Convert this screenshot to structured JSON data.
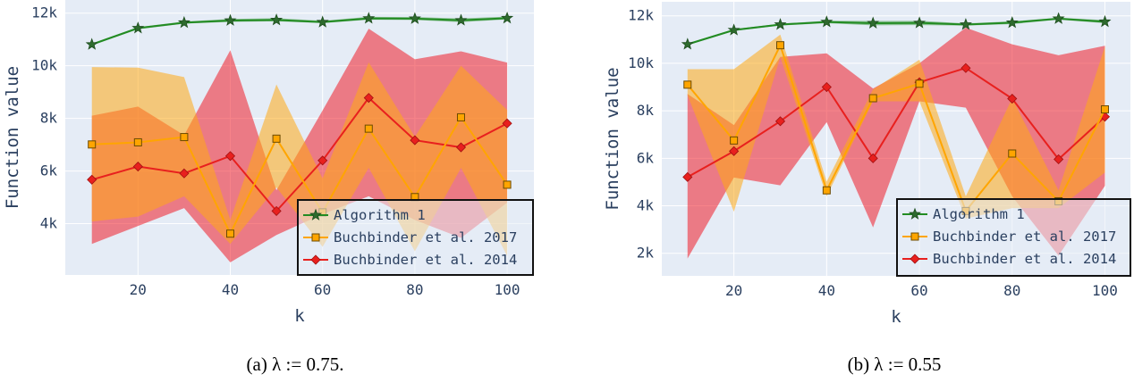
{
  "chart_data": [
    {
      "type": "line",
      "title": "",
      "xlabel": "k",
      "ylabel": "Function value",
      "xlim": [
        4.24,
        105.8
      ],
      "ylim": [
        2050,
        12500
      ],
      "x": [
        10,
        20,
        30,
        40,
        50,
        60,
        70,
        80,
        90,
        100
      ],
      "x_ticks": [
        20,
        40,
        60,
        80,
        100
      ],
      "y_ticks": [
        4000,
        6000,
        8000,
        10000,
        12000
      ],
      "y_tick_labels": [
        "4k",
        "6k",
        "8k",
        "10k",
        "12k"
      ],
      "grid": true,
      "legend_position": "bottom-right",
      "series": [
        {
          "name": "Algorithm 1",
          "color": "#228b22",
          "marker": "star",
          "values": [
            10810,
            11430,
            11640,
            11720,
            11740,
            11660,
            11800,
            11790,
            11730,
            11810
          ],
          "upper": [
            10850,
            11470,
            11680,
            11780,
            11810,
            11710,
            11860,
            11850,
            11800,
            11870
          ],
          "lower": [
            10770,
            11390,
            11600,
            11670,
            11690,
            11620,
            11750,
            11740,
            11660,
            11760
          ]
        },
        {
          "name": "Buchbinder et al. 2017",
          "color": "#ffa500",
          "marker": "square",
          "values": [
            7010,
            7090,
            7290,
            3620,
            7230,
            4430,
            7610,
            5010,
            8040,
            5480
          ],
          "upper": [
            9950,
            9930,
            9570,
            4140,
            9290,
            5720,
            10130,
            7300,
            10000,
            8320
          ],
          "lower": [
            4080,
            4270,
            5040,
            3230,
            5380,
            3120,
            6120,
            2950,
            6120,
            2780
          ]
        },
        {
          "name": "Buchbinder et al. 2014",
          "color": "#e8201e",
          "marker": "diamond",
          "values": [
            5670,
            6170,
            5910,
            6570,
            4480,
            6400,
            8780,
            7170,
            6900,
            7810
          ],
          "upper": [
            8100,
            8450,
            7360,
            10590,
            5270,
            8300,
            11410,
            10250,
            10550,
            10120
          ],
          "lower": [
            3230,
            3910,
            4590,
            2530,
            3570,
            4360,
            5040,
            4140,
            3460,
            4800
          ]
        }
      ],
      "caption": "(a) λ := 0.75."
    },
    {
      "type": "line",
      "title": "",
      "xlabel": "k",
      "ylabel": "Function value",
      "xlim": [
        4.45,
        105.5
      ],
      "ylim": [
        1050,
        12590
      ],
      "x": [
        10,
        20,
        30,
        40,
        50,
        60,
        70,
        80,
        90,
        100
      ],
      "x_ticks": [
        20,
        40,
        60,
        80,
        100
      ],
      "y_ticks": [
        2000,
        4000,
        6000,
        8000,
        10000,
        12000
      ],
      "y_tick_labels": [
        "2k",
        "4k",
        "6k",
        "8k",
        "10k",
        "12k"
      ],
      "grid": true,
      "legend_position": "bottom-right",
      "series": [
        {
          "name": "Algorithm 1",
          "color": "#228b22",
          "marker": "star",
          "values": [
            10800,
            11400,
            11630,
            11740,
            11690,
            11700,
            11630,
            11710,
            11880,
            11750
          ],
          "upper": [
            10840,
            11440,
            11670,
            11790,
            11780,
            11790,
            11680,
            11770,
            11920,
            11820
          ],
          "lower": [
            10760,
            11360,
            11590,
            11690,
            11600,
            11610,
            11590,
            11650,
            11840,
            11690
          ]
        },
        {
          "name": "Buchbinder et al. 2017",
          "color": "#ffa500",
          "marker": "square",
          "values": [
            9100,
            6750,
            10760,
            4650,
            8530,
            9140,
            3780,
            6200,
            4190,
            8060
          ],
          "upper": [
            9750,
            9750,
            11210,
            5020,
            8900,
            10150,
            4400,
            8530,
            4650,
            10710
          ],
          "lower": [
            8650,
            3750,
            10270,
            4400,
            8400,
            8400,
            3460,
            3900,
            3900,
            5400
          ]
        },
        {
          "name": "Buchbinder et al. 2014",
          "color": "#e8201e",
          "marker": "diamond",
          "values": [
            5210,
            6300,
            7560,
            9000,
            6000,
            9200,
            9800,
            8510,
            5960,
            7750
          ],
          "upper": [
            8710,
            7400,
            10270,
            10420,
            8940,
            10000,
            11500,
            10800,
            10340,
            10740
          ],
          "lower": [
            1780,
            5190,
            4860,
            7520,
            3090,
            8400,
            8130,
            4400,
            1900,
            4840
          ]
        }
      ],
      "caption": "(b) λ := 0.55"
    }
  ]
}
